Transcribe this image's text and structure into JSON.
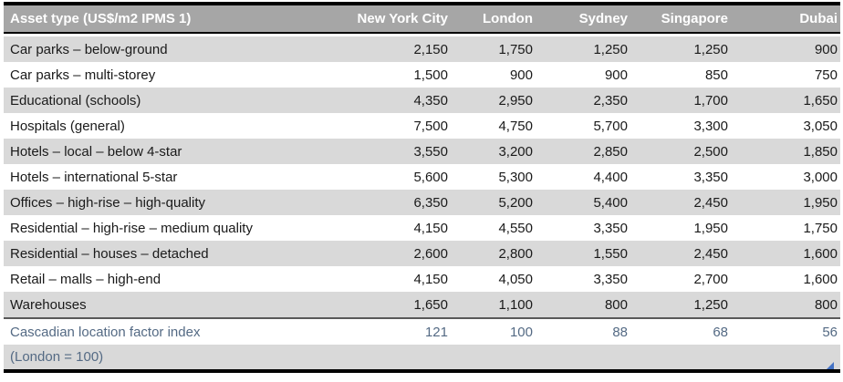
{
  "chart_data": {
    "type": "table",
    "title": "Asset type (US$/m2 IPMS 1)",
    "columns": [
      "Asset type (US$/m2 IPMS 1)",
      "New York City",
      "London",
      "Sydney",
      "Singapore",
      "Dubai"
    ],
    "rows": [
      {
        "label": "Car parks – below-ground",
        "values": [
          "2,150",
          "1,750",
          "1,250",
          "1,250",
          "900"
        ]
      },
      {
        "label": "Car parks – multi-storey",
        "values": [
          "1,500",
          "900",
          "900",
          "850",
          "750"
        ]
      },
      {
        "label": "Educational (schools)",
        "values": [
          "4,350",
          "2,950",
          "2,350",
          "1,700",
          "1,650"
        ]
      },
      {
        "label": "Hospitals (general)",
        "values": [
          "7,500",
          "4,750",
          "5,700",
          "3,300",
          "3,050"
        ]
      },
      {
        "label": "Hotels – local – below 4-star",
        "values": [
          "3,550",
          "3,200",
          "2,850",
          "2,500",
          "1,850"
        ]
      },
      {
        "label": "Hotels – international 5-star",
        "values": [
          "5,600",
          "5,300",
          "4,400",
          "3,350",
          "3,000"
        ]
      },
      {
        "label": "Offices – high-rise – high-quality",
        "values": [
          "6,350",
          "5,200",
          "5,400",
          "2,450",
          "1,950"
        ]
      },
      {
        "label": "Residential – high-rise – medium quality",
        "values": [
          "4,150",
          "4,550",
          "3,350",
          "1,950",
          "1,750"
        ]
      },
      {
        "label": "Residential – houses – detached",
        "values": [
          "2,600",
          "2,800",
          "1,550",
          "2,450",
          "1,600"
        ]
      },
      {
        "label": "Retail – malls – high-end",
        "values": [
          "4,150",
          "4,050",
          "3,350",
          "2,700",
          "1,600"
        ]
      },
      {
        "label": "Warehouses",
        "values": [
          "1,650",
          "1,100",
          "800",
          "1,250",
          "800"
        ]
      }
    ],
    "index_row": {
      "label": "Cascadian location factor index",
      "values": [
        "121",
        "100",
        "88",
        "68",
        "56"
      ]
    },
    "footnote": "(London = 100)"
  },
  "colors": {
    "header_bg": "#a6a6a6",
    "header_text": "#ffffff",
    "row_shaded_bg": "#d9d9d9",
    "row_plain_bg": "#ffffff",
    "body_text": "#1a1a1a",
    "index_text": "#546a84",
    "heavy_border": "#000000",
    "index_separator": "#595959",
    "corner_handle": "#4472c4"
  }
}
